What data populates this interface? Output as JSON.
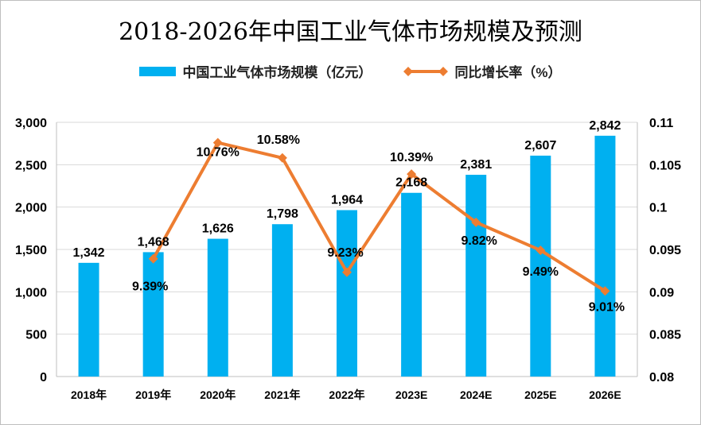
{
  "chart_data": {
    "type": "bar+line",
    "title": "2018-2026年中国工业气体市场规模及预测",
    "categories": [
      "2018年",
      "2019年",
      "2020年",
      "2021年",
      "2022年",
      "2023E",
      "2024E",
      "2025E",
      "2026E"
    ],
    "series": [
      {
        "name": "中国工业气体市场规模（亿元）",
        "type": "bar",
        "axis": "left",
        "color": "#00b0f0",
        "values": [
          1342,
          1468,
          1626,
          1798,
          1964,
          2168,
          2381,
          2607,
          2842
        ],
        "labels": [
          "1,342",
          "1,468",
          "1,626",
          "1,798",
          "1,964",
          "2,168",
          "2,381",
          "2,607",
          "2,842"
        ]
      },
      {
        "name": "同比增长率（%）",
        "type": "line",
        "axis": "right",
        "color": "#ed7d31",
        "marker": "diamond",
        "values": [
          null,
          0.0939,
          0.1076,
          0.1058,
          0.0923,
          0.1039,
          0.0982,
          0.0949,
          0.0901
        ],
        "labels": [
          "",
          "9.39%",
          "10.76%",
          "10.58%",
          "9.23%",
          "10.39%",
          "9.82%",
          "9.49%",
          "9.01%"
        ]
      }
    ],
    "y_left": {
      "range": [
        0,
        3000
      ],
      "ticks": [
        "0",
        "500",
        "1,000",
        "1,500",
        "2,000",
        "2,500",
        "3,000"
      ],
      "tick_values": [
        0,
        500,
        1000,
        1500,
        2000,
        2500,
        3000
      ]
    },
    "y_right": {
      "range": [
        0.08,
        0.11
      ],
      "ticks": [
        "0.08",
        "0.085",
        "0.09",
        "0.095",
        "0.1",
        "0.105",
        "0.11"
      ],
      "tick_values": [
        0.08,
        0.085,
        0.09,
        0.095,
        0.1,
        0.105,
        0.11
      ]
    },
    "grid": true,
    "legend_position": "top"
  }
}
